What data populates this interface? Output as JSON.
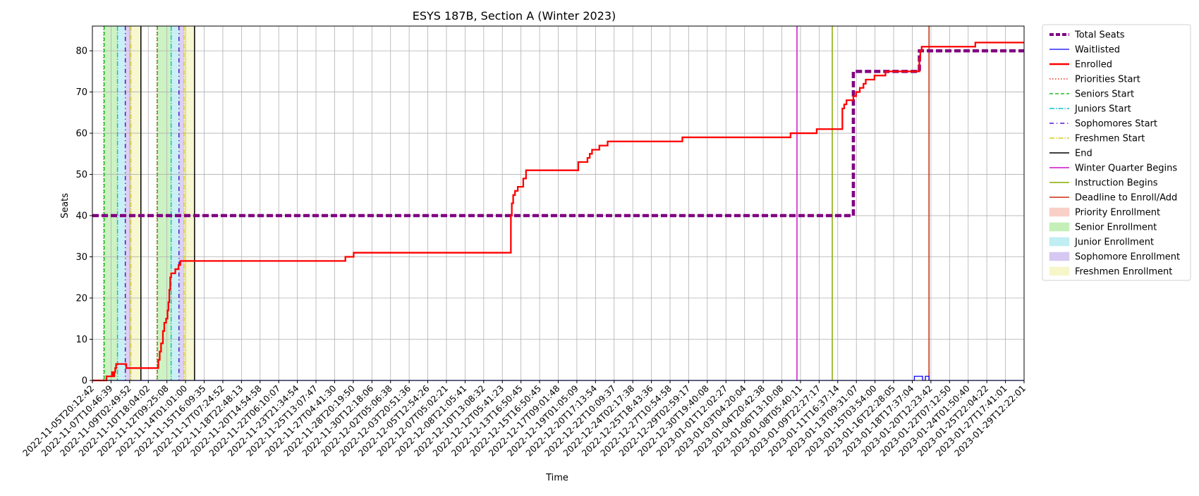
{
  "chart_data": {
    "type": "line",
    "title": "ESYS 187B, Section A (Winter 2023)",
    "xlabel": "Time",
    "ylabel": "Seats",
    "ylim": [
      0,
      86
    ],
    "yticks": [
      0,
      10,
      20,
      30,
      40,
      50,
      60,
      70,
      80
    ],
    "grid": true,
    "legend_position": "outside right",
    "x_range": [
      "2022-11-05T20:12:42",
      "2023-01-29T12:22:01"
    ],
    "xtick_labels": [
      "2022-11-05T20:12:42",
      "2022-11-07T10:46:39",
      "2022-11-09T02:49:52",
      "2022-11-10T18:04:02",
      "2022-11-12T09:25:08",
      "2022-11-14T01:01:00",
      "2022-11-15T16:09:35",
      "2022-11-17T07:24:52",
      "2022-11-18T22:48:13",
      "2022-11-20T14:54:58",
      "2022-11-22T06:10:07",
      "2022-11-23T21:34:54",
      "2022-11-25T13:07:47",
      "2022-11-27T04:41:30",
      "2022-11-28T20:19:50",
      "2022-11-30T12:18:06",
      "2022-12-02T05:06:38",
      "2022-12-03T20:51:36",
      "2022-12-05T12:54:26",
      "2022-12-07T05:02:21",
      "2022-12-08T21:05:41",
      "2022-12-10T13:08:32",
      "2022-12-12T05:41:23",
      "2022-12-13T16:50:45",
      "2022-12-15T16:50:45",
      "2022-12-17T09:01:48",
      "2022-12-19T01:05:09",
      "2022-12-20T17:13:54",
      "2022-12-22T10:09:37",
      "2022-12-24T02:17:38",
      "2022-12-25T18:43:36",
      "2022-12-27T10:54:58",
      "2022-12-29T02:59:17",
      "2022-12-30T19:40:08",
      "2023-01-01T12:02:27",
      "2023-01-03T04:20:04",
      "2023-01-04T20:42:38",
      "2023-01-06T13:10:08",
      "2023-01-08T05:40:11",
      "2023-01-09T22:27:17",
      "2023-01-11T16:37:14",
      "2023-01-13T09:31:07",
      "2023-01-15T03:54:00",
      "2023-01-16T22:28:05",
      "2023-01-18T17:37:04",
      "2023-01-20T12:23:42",
      "2023-01-22T07:12:50",
      "2023-01-24T01:50:40",
      "2023-01-25T22:04:22",
      "2023-01-27T17:41:01",
      "2023-01-29T12:22:01"
    ],
    "phases": [
      {
        "name": "Senior Enrollment",
        "start": "2022-11-06T22:00",
        "end": "2022-11-08T03:00",
        "color": "#c4f0b8"
      },
      {
        "name": "Junior Enrollment",
        "start": "2022-11-08T03:00",
        "end": "2022-11-08T20:00",
        "color": "#c0eef2"
      },
      {
        "name": "Sophomore Enrollment",
        "start": "2022-11-08T20:00",
        "end": "2022-11-09T08:00",
        "color": "#d6c8f2"
      },
      {
        "name": "Freshmen Enrollment",
        "start": "2022-11-09T08:00",
        "end": "2022-11-10T06:00",
        "color": "#f6f6c8"
      },
      {
        "name": "Senior Enrollment",
        "start": "2022-11-11T18:00",
        "end": "2022-11-13T00:00",
        "color": "#c4f0b8"
      },
      {
        "name": "Junior Enrollment",
        "start": "2022-11-13T00:00",
        "end": "2022-11-13T17:00",
        "color": "#c0eef2"
      },
      {
        "name": "Sophomore Enrollment",
        "start": "2022-11-13T17:00",
        "end": "2022-11-14T04:00",
        "color": "#d6c8f2"
      },
      {
        "name": "Freshmen Enrollment",
        "start": "2022-11-14T04:00",
        "end": "2022-11-15T03:00",
        "color": "#f6f6c8"
      }
    ],
    "event_lines": [
      {
        "name": "Priorities Start",
        "x": "2022-11-06T21:00",
        "color": "#e8341c",
        "dash": "1.5,2.5"
      },
      {
        "name": "Seniors Start",
        "x": "2022-11-06T22:00",
        "color": "#22bb22",
        "dash": "5,3"
      },
      {
        "name": "Juniors Start",
        "x": "2022-11-08T03:00",
        "color": "#10c0d0",
        "dash": "7,2,1.5,2"
      },
      {
        "name": "Sophomores Start",
        "x": "2022-11-08T20:00",
        "color": "#5a10d0",
        "dash": "6,4,1.2,4"
      },
      {
        "name": "Freshmen Start",
        "x": "2022-11-09T08:00",
        "color": "#d8c820",
        "dash": "7,2,1.5,2"
      },
      {
        "name": "End",
        "x": "2022-11-10T06:00",
        "color": "#000000",
        "dash": ""
      },
      {
        "name": "Priorities Start",
        "x": "2022-11-11T17:00",
        "color": "#e8341c",
        "dash": "1.5,2.5"
      },
      {
        "name": "Seniors Start",
        "x": "2022-11-11T18:00",
        "color": "#22bb22",
        "dash": "5,3"
      },
      {
        "name": "Juniors Start",
        "x": "2022-11-13T00:00",
        "color": "#10c0d0",
        "dash": "7,2,1.5,2"
      },
      {
        "name": "Sophomores Start",
        "x": "2022-11-13T17:00",
        "color": "#5a10d0",
        "dash": "6,4,1.2,4"
      },
      {
        "name": "Freshmen Start",
        "x": "2022-11-14T04:00",
        "color": "#d8c820",
        "dash": "7,2,1.5,2"
      },
      {
        "name": "End",
        "x": "2022-11-15T03:00",
        "color": "#000000",
        "dash": ""
      },
      {
        "name": "Winter Quarter Begins",
        "x": "2023-01-08T21:00",
        "color": "#cc11cc",
        "dash": ""
      },
      {
        "name": "Instruction Begins",
        "x": "2023-01-12T02:00",
        "color": "#88aa00",
        "dash": ""
      },
      {
        "name": "Deadline to Enroll/Add",
        "x": "2023-01-20T21:00",
        "color": "#cc2a0a",
        "dash": ""
      }
    ],
    "series": [
      {
        "name": "Total Seats",
        "color": "#800080",
        "style": "step-dashed",
        "points": [
          [
            "2022-11-05T20:12",
            40
          ],
          [
            "2023-01-13T22:00",
            40
          ],
          [
            "2023-01-14T00:00",
            75
          ],
          [
            "2023-01-19T23:00",
            75
          ],
          [
            "2023-01-20T00:00",
            80
          ],
          [
            "2023-01-29T12:22",
            80
          ]
        ]
      },
      {
        "name": "Waitlisted",
        "color": "#0000ff",
        "style": "step",
        "points": [
          [
            "2022-11-05T20:12",
            0
          ],
          [
            "2023-01-19T12:00",
            0
          ],
          [
            "2023-01-19T13:00",
            1
          ],
          [
            "2023-01-20T06:00",
            1
          ],
          [
            "2023-01-20T07:00",
            0
          ],
          [
            "2023-01-20T12:00",
            0
          ],
          [
            "2023-01-20T13:00",
            1
          ],
          [
            "2023-01-20T20:00",
            1
          ],
          [
            "2023-01-20T21:00",
            0
          ],
          [
            "2023-01-29T12:22",
            0
          ]
        ]
      },
      {
        "name": "Enrolled",
        "color": "#ff0000",
        "style": "step",
        "points": [
          [
            "2022-11-05T20:12",
            0
          ],
          [
            "2022-11-07T01:00",
            0
          ],
          [
            "2022-11-07T03:00",
            1
          ],
          [
            "2022-11-07T14:00",
            1
          ],
          [
            "2022-11-07T15:00",
            2
          ],
          [
            "2022-11-07T17:00",
            1
          ],
          [
            "2022-11-07T20:00",
            2
          ],
          [
            "2022-11-07T22:00",
            3
          ],
          [
            "2022-11-08T00:00",
            4
          ],
          [
            "2022-11-08T20:00",
            4
          ],
          [
            "2022-11-08T22:00",
            3
          ],
          [
            "2022-11-11T18:00",
            3
          ],
          [
            "2022-11-11T20:00",
            5
          ],
          [
            "2022-11-11T23:00",
            7
          ],
          [
            "2022-11-12T02:00",
            9
          ],
          [
            "2022-11-12T06:00",
            12
          ],
          [
            "2022-11-12T09:00",
            14
          ],
          [
            "2022-11-12T13:00",
            15
          ],
          [
            "2022-11-12T16:00",
            17
          ],
          [
            "2022-11-12T18:00",
            19
          ],
          [
            "2022-11-12T20:00",
            22
          ],
          [
            "2022-11-12T22:00",
            25
          ],
          [
            "2022-11-13T00:00",
            26
          ],
          [
            "2022-11-13T09:00",
            27
          ],
          [
            "2022-11-13T16:00",
            28
          ],
          [
            "2022-11-13T20:00",
            29
          ],
          [
            "2022-11-28T18:00",
            29
          ],
          [
            "2022-11-28T20:00",
            30
          ],
          [
            "2022-11-29T14:00",
            31
          ],
          [
            "2022-12-13T20:00",
            31
          ],
          [
            "2022-12-13T21:00",
            40
          ],
          [
            "2022-12-13T23:00",
            43
          ],
          [
            "2022-12-14T02:00",
            45
          ],
          [
            "2022-12-14T06:00",
            46
          ],
          [
            "2022-12-14T12:00",
            47
          ],
          [
            "2022-12-15T00:00",
            49
          ],
          [
            "2022-12-15T06:00",
            51
          ],
          [
            "2022-12-19T22:00",
            51
          ],
          [
            "2022-12-20T00:00",
            53
          ],
          [
            "2022-12-20T20:00",
            54
          ],
          [
            "2022-12-21T01:00",
            55
          ],
          [
            "2022-12-21T06:00",
            56
          ],
          [
            "2022-12-21T22:00",
            57
          ],
          [
            "2022-12-22T16:00",
            58
          ],
          [
            "2022-12-29T09:00",
            58
          ],
          [
            "2022-12-29T11:00",
            59
          ],
          [
            "2023-01-08T05:00",
            59
          ],
          [
            "2023-01-08T07:00",
            60
          ],
          [
            "2023-01-10T14:00",
            60
          ],
          [
            "2023-01-10T16:00",
            61
          ],
          [
            "2023-01-12T22:00",
            61
          ],
          [
            "2023-01-13T00:00",
            66
          ],
          [
            "2023-01-13T04:00",
            67
          ],
          [
            "2023-01-13T09:00",
            68
          ],
          [
            "2023-01-13T22:00",
            68
          ],
          [
            "2023-01-14T00:00",
            69
          ],
          [
            "2023-01-14T06:00",
            70
          ],
          [
            "2023-01-14T14:00",
            71
          ],
          [
            "2023-01-14T22:00",
            72
          ],
          [
            "2023-01-15T03:00",
            73
          ],
          [
            "2023-01-15T22:00",
            74
          ],
          [
            "2023-01-16T22:00",
            75
          ],
          [
            "2023-01-19T23:00",
            75
          ],
          [
            "2023-01-20T00:00",
            78
          ],
          [
            "2023-01-20T02:00",
            80
          ],
          [
            "2023-01-20T05:00",
            81
          ],
          [
            "2023-01-25T00:00",
            81
          ],
          [
            "2023-01-25T02:00",
            82
          ],
          [
            "2023-01-29T12:22",
            82
          ]
        ]
      }
    ],
    "legend": [
      {
        "label": "Total Seats",
        "type": "line",
        "color": "#800080",
        "width": 4,
        "dash": "6,3"
      },
      {
        "label": "Waitlisted",
        "type": "line",
        "color": "#0000ff",
        "width": 1.2,
        "dash": ""
      },
      {
        "label": "Enrolled",
        "type": "line",
        "color": "#ff0000",
        "width": 2.4,
        "dash": ""
      },
      {
        "label": "Priorities Start",
        "type": "line",
        "color": "#e8341c",
        "width": 1.5,
        "dash": "1.5,2.5"
      },
      {
        "label": "Seniors Start",
        "type": "line",
        "color": "#22bb22",
        "width": 1.5,
        "dash": "5,3"
      },
      {
        "label": "Juniors Start",
        "type": "line",
        "color": "#10c0d0",
        "width": 1.5,
        "dash": "7,2,1.5,2"
      },
      {
        "label": "Sophomores Start",
        "type": "line",
        "color": "#5a10d0",
        "width": 1.5,
        "dash": "6,4,1.2,4"
      },
      {
        "label": "Freshmen Start",
        "type": "line",
        "color": "#d8c820",
        "width": 1.5,
        "dash": "7,2,1.5,2"
      },
      {
        "label": "End",
        "type": "line",
        "color": "#000000",
        "width": 1.5,
        "dash": ""
      },
      {
        "label": "Winter Quarter Begins",
        "type": "line",
        "color": "#cc11cc",
        "width": 1.5,
        "dash": ""
      },
      {
        "label": "Instruction Begins",
        "type": "line",
        "color": "#88aa00",
        "width": 1.5,
        "dash": ""
      },
      {
        "label": "Deadline to Enroll/Add",
        "type": "line",
        "color": "#cc2a0a",
        "width": 1.5,
        "dash": ""
      },
      {
        "label": "Priority Enrollment",
        "type": "patch",
        "color": "#f8d0c8"
      },
      {
        "label": "Senior Enrollment",
        "type": "patch",
        "color": "#c4f0b8"
      },
      {
        "label": "Junior Enrollment",
        "type": "patch",
        "color": "#c0eef2"
      },
      {
        "label": "Sophomore Enrollment",
        "type": "patch",
        "color": "#d6c8f2"
      },
      {
        "label": "Freshmen Enrollment",
        "type": "patch",
        "color": "#f6f6c8"
      }
    ]
  }
}
